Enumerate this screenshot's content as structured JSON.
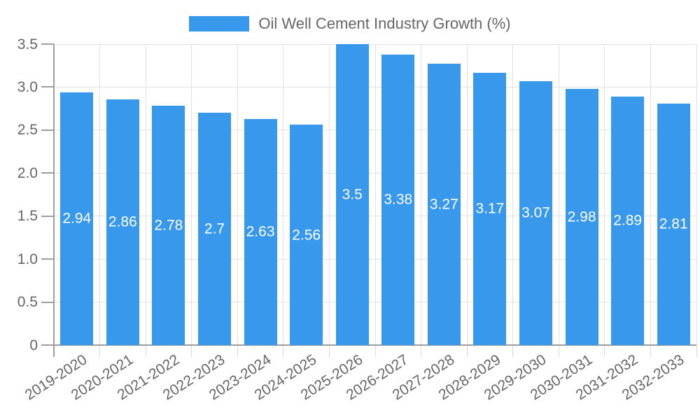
{
  "chart_data": {
    "type": "bar",
    "title": "",
    "legend": {
      "label": "Oil Well Cement Industry Growth (%)",
      "position": "top"
    },
    "categories": [
      "2019-2020",
      "2020-2021",
      "2021-2022",
      "2022-2023",
      "2023-2024",
      "2024-2025",
      "2025-2026",
      "2026-2027",
      "2027-2028",
      "2028-2029",
      "2029-2030",
      "2030-2031",
      "2031-2032",
      "2032-2033"
    ],
    "values": [
      2.94,
      2.86,
      2.78,
      2.7,
      2.63,
      2.56,
      3.5,
      3.38,
      3.27,
      3.17,
      3.07,
      2.98,
      2.89,
      2.81
    ],
    "value_labels": [
      "2.94",
      "2.86",
      "2.78",
      "2.7",
      "2.63",
      "2.56",
      "3.5",
      "3.38",
      "3.27",
      "3.17",
      "3.07",
      "2.98",
      "2.89",
      "2.81"
    ],
    "xlabel": "",
    "ylabel": "",
    "ylim": [
      0,
      3.5
    ],
    "ytick_step": 0.5,
    "ytick_labels": [
      "0",
      "0.5",
      "1.0",
      "1.5",
      "2.0",
      "2.5",
      "3.0",
      "3.5"
    ],
    "grid": true,
    "colors": {
      "bar": "#3899EC",
      "text": "#666666",
      "axis": "#9e9e9e",
      "grid": "#e2e2e2",
      "xtick_mark": "#d8d8d8",
      "value_label": "#ffffff",
      "background": "#ffffff"
    }
  }
}
